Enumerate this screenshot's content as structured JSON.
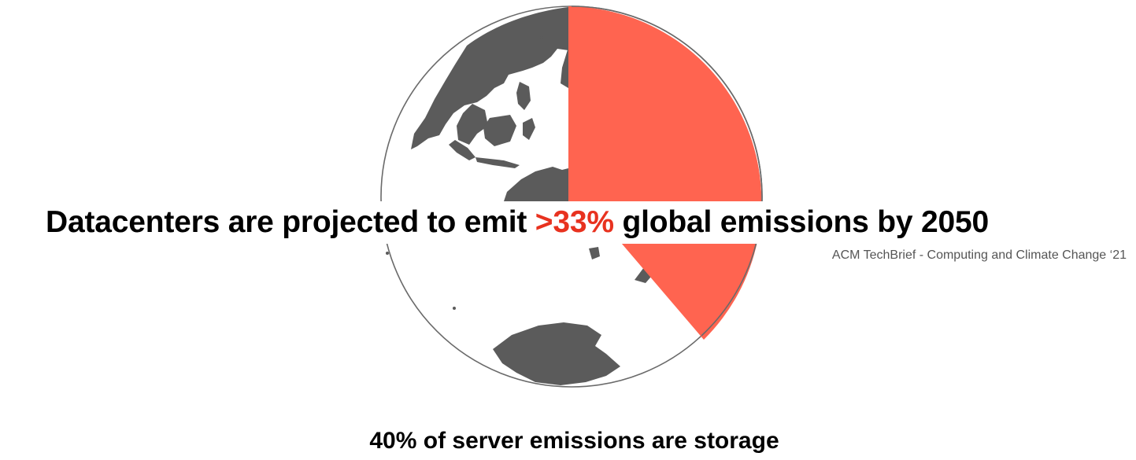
{
  "slide": {
    "headline": {
      "before": "Datacenters are projected to emit ",
      "highlight": ">33%",
      "after": " global emissions by 2050"
    },
    "citation": "ACM TechBrief - Computing and Climate Change ‘21",
    "footer_stat": "40% of server emissions are storage"
  },
  "graphic": {
    "description_icon": "globe-icon",
    "wedge_share_percent": 33
  },
  "colors": {
    "accent": "#ff6450",
    "highlight_text": "#e8321f",
    "land": "#5b5b5b",
    "outline": "#6a6a6a"
  }
}
